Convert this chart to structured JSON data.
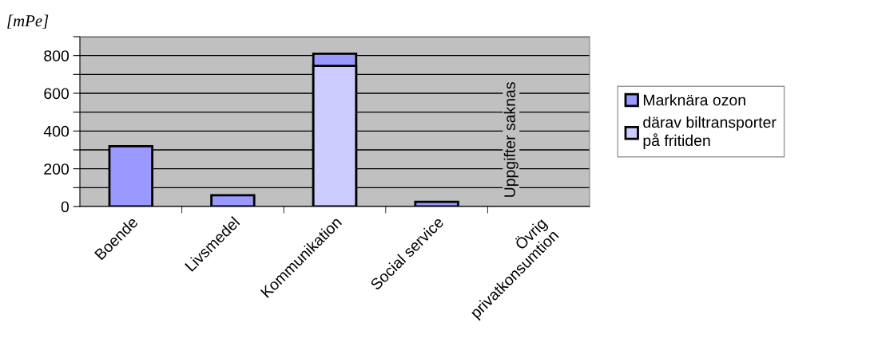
{
  "chart_data": {
    "type": "bar",
    "ylabel": "[mPe]",
    "categories": [
      "Boende",
      "Livsmedel",
      "Kommunikation",
      "Social service",
      "Övrig\nprivatkonsumtion"
    ],
    "series": [
      {
        "name": "Marknära ozon",
        "color": "#9999ff",
        "values": [
          320,
          60,
          810,
          25,
          null
        ]
      },
      {
        "name": "därav biltransporter\npå fritiden",
        "color": "#ccccff",
        "values": [
          null,
          null,
          745,
          null,
          null
        ]
      }
    ],
    "ylim": [
      0,
      900
    ],
    "yticks": [
      0,
      {
        "value": 100,
        "label": null
      },
      200,
      {
        "value": 300,
        "label": null
      },
      400,
      {
        "value": 500,
        "label": null
      },
      600,
      {
        "value": 700,
        "label": null
      },
      800,
      {
        "value": 900,
        "label": null
      }
    ],
    "annotations": [
      "Uppgifter saknas"
    ],
    "grid": "y",
    "legend": "right"
  }
}
